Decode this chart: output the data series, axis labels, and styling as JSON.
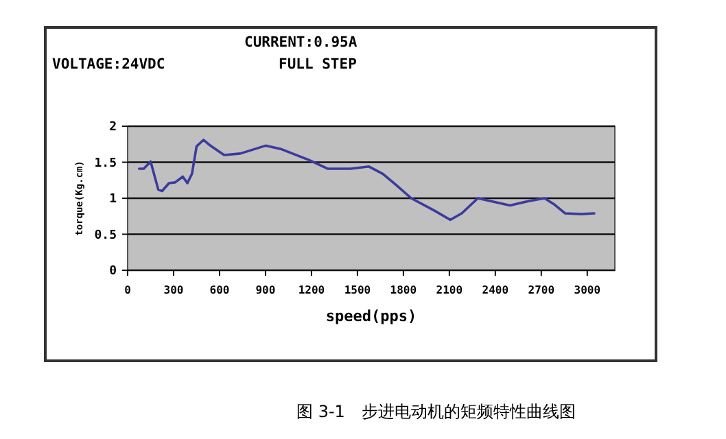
{
  "chart_data": {
    "type": "line",
    "xlabel": "speed(pps)",
    "ylabel": "torque(Kg.cm)",
    "annotations": [
      "CURRENT:0.95A",
      "VOLTAGE:24VDC",
      "FULL STEP",
      "图 3-1　步进电动机的矩频特性曲线图"
    ],
    "xlim": [
      0,
      3180
    ],
    "xticks": [
      0,
      300,
      600,
      900,
      1200,
      1500,
      1800,
      2100,
      2400,
      2700,
      3000
    ],
    "ylim": [
      0,
      2
    ],
    "yticks": [
      0,
      0.5,
      1,
      1.5,
      2
    ],
    "grid": "y",
    "series": [
      {
        "color": "#3b3b9c",
        "x": [
          75,
          105,
          150,
          200,
          225,
          270,
          310,
          360,
          390,
          420,
          450,
          495,
          540,
          630,
          735,
          900,
          1005,
          1185,
          1305,
          1455,
          1575,
          1665,
          1755,
          1851,
          2001,
          2106,
          2181,
          2286,
          2391,
          2496,
          2616,
          2721,
          2781,
          2856,
          2961,
          3045
        ],
        "values": [
          1.41,
          1.41,
          1.51,
          1.12,
          1.1,
          1.21,
          1.22,
          1.3,
          1.21,
          1.34,
          1.72,
          1.81,
          1.73,
          1.6,
          1.62,
          1.73,
          1.68,
          1.53,
          1.41,
          1.41,
          1.44,
          1.34,
          1.18,
          1.0,
          0.83,
          0.7,
          0.79,
          1.0,
          0.95,
          0.9,
          0.96,
          1.0,
          0.92,
          0.79,
          0.78,
          0.79
        ]
      }
    ]
  }
}
